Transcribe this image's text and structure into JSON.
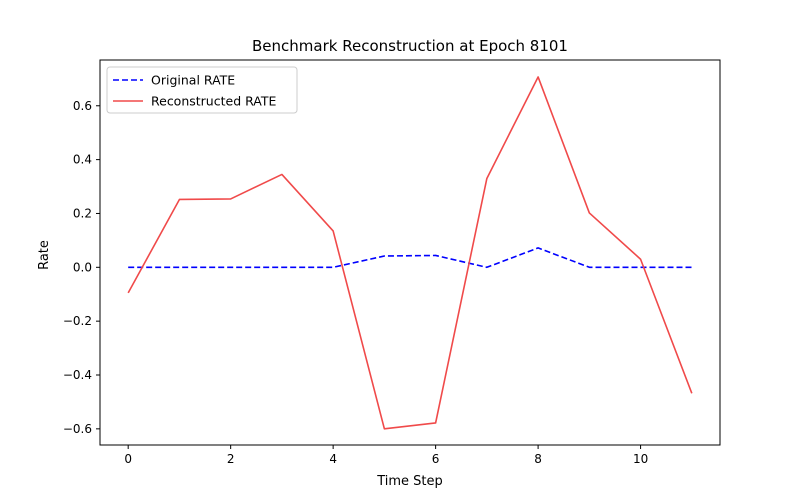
{
  "chart_data": {
    "type": "line",
    "title": "Benchmark Reconstruction at Epoch 8101",
    "xlabel": "Time Step",
    "ylabel": "Rate",
    "xlim": [
      -0.55,
      11.55
    ],
    "ylim": [
      -0.66,
      0.77
    ],
    "xticks": [
      0,
      2,
      4,
      6,
      8,
      10
    ],
    "yticks": [
      -0.6,
      -0.4,
      -0.2,
      0.0,
      0.2,
      0.4,
      0.6
    ],
    "xtick_labels": [
      "0",
      "2",
      "4",
      "6",
      "8",
      "10"
    ],
    "ytick_labels": [
      "−0.6",
      "−0.4",
      "−0.2",
      "0.0",
      "0.2",
      "0.4",
      "0.6"
    ],
    "grid": false,
    "legend_position": "top-left",
    "x": [
      0,
      1,
      2,
      3,
      4,
      5,
      6,
      7,
      8,
      9,
      10,
      11
    ],
    "series": [
      {
        "name": "Original RATE",
        "color": "#0000ff",
        "style": "dashed",
        "values": [
          0.0,
          0.0,
          0.0,
          0.0,
          0.0,
          0.042,
          0.044,
          0.0,
          0.072,
          0.0,
          0.0,
          0.0
        ]
      },
      {
        "name": "Reconstructed RATE",
        "color": "#f04a4a",
        "style": "solid",
        "values": [
          -0.095,
          0.252,
          0.254,
          0.345,
          0.135,
          -0.6,
          -0.578,
          0.33,
          0.707,
          0.202,
          0.03,
          -0.468
        ]
      }
    ]
  }
}
